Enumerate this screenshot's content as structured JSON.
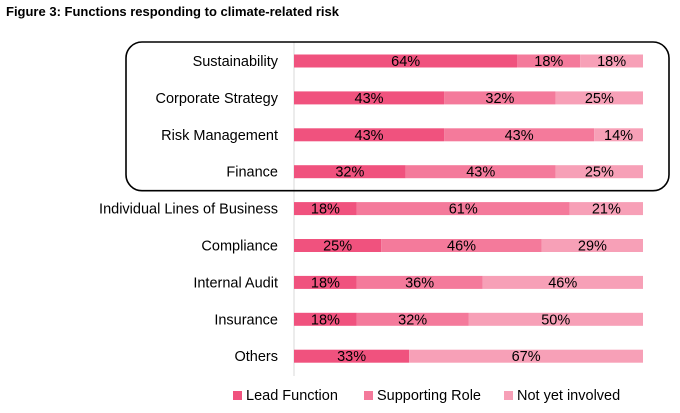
{
  "figure_title": "Figure 3: Functions responding to climate-related risk",
  "chart_data": {
    "type": "bar",
    "orientation": "horizontal",
    "stacked": "100%",
    "categories": [
      "Sustainability",
      "Corporate Strategy",
      "Risk Management",
      "Finance",
      "Individual Lines of Business",
      "Compliance",
      "Internal Audit",
      "Insurance",
      "Others"
    ],
    "series": [
      {
        "name": "Lead Function",
        "color": "#f0527e",
        "values": [
          64,
          43,
          43,
          32,
          18,
          25,
          18,
          18,
          33
        ]
      },
      {
        "name": "Supporting Role",
        "color": "#f47a9b",
        "values": [
          18,
          32,
          43,
          43,
          61,
          46,
          36,
          32,
          0
        ]
      },
      {
        "name": "Not yet involved",
        "color": "#f7a0b7",
        "values": [
          18,
          25,
          14,
          25,
          21,
          29,
          46,
          50,
          67
        ]
      }
    ],
    "data_label_suffix": "%",
    "xlim": [
      0,
      100
    ],
    "legend_position": "bottom",
    "highlight_box_categories": [
      "Sustainability",
      "Corporate Strategy",
      "Risk Management",
      "Finance"
    ]
  }
}
